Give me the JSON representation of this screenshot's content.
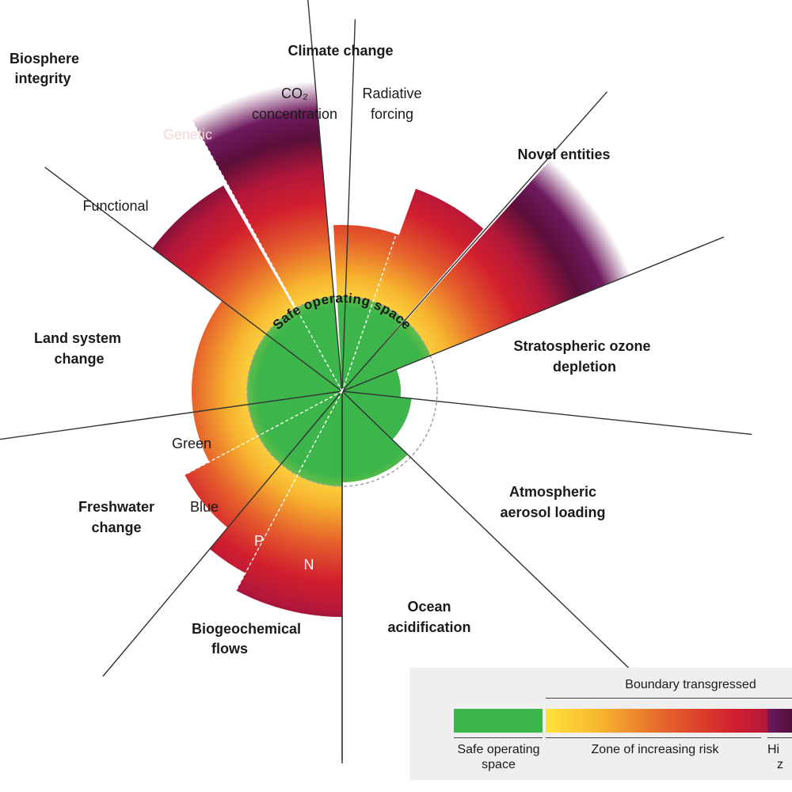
{
  "center_label": "Safe operating space",
  "colors": {
    "safe": "#3cb54a",
    "risk_yellow": "#ffe23a",
    "risk_orange": "#f2a72c",
    "risk_red": "#d11f2e",
    "high_risk": "#5a0f3a",
    "line": "#333333",
    "boundary_dash": "#9a9a9a"
  },
  "boundaries": [
    {
      "name": "Climate change",
      "subs": [
        "CO₂ concentration",
        "Radiative forcing"
      ]
    },
    {
      "name": "Novel entities"
    },
    {
      "name": "Stratospheric ozone depletion"
    },
    {
      "name": "Atmospheric aerosol loading"
    },
    {
      "name": "Ocean acidification"
    },
    {
      "name": "Biogeochemical flows",
      "subs": [
        "P",
        "N"
      ]
    },
    {
      "name": "Freshwater change",
      "subs": [
        "Green",
        "Blue"
      ]
    },
    {
      "name": "Land system change"
    },
    {
      "name": "Biosphere integrity",
      "subs": [
        "Functional",
        "Genetic"
      ]
    }
  ],
  "labels": {
    "climate": "Climate change",
    "co2_line1": "CO₂",
    "co2_line2": "concentration",
    "rf_line1": "Radiative",
    "rf_line2": "forcing",
    "novel": "Novel entities",
    "ozone_line1": "Stratospheric ozone",
    "ozone_line2": "depletion",
    "aerosol_line1": "Atmospheric",
    "aerosol_line2": "aerosol loading",
    "ocean_line1": "Ocean",
    "ocean_line2": "acidification",
    "bgc_line1": "Biogeochemical",
    "bgc_line2": "flows",
    "p": "P",
    "n": "N",
    "fresh_line1": "Freshwater",
    "fresh_line2": "change",
    "green": "Green",
    "blue": "Blue",
    "land_line1": "Land system",
    "land_line2": "change",
    "bio_line1": "Biosphere",
    "bio_line2": "integrity",
    "functional": "Functional",
    "genetic": "Genetic"
  },
  "legend": {
    "transgressed": "Boundary transgressed",
    "safe_line1": "Safe operating",
    "safe_line2": "space",
    "risk": "Zone of increasing risk",
    "high_partial_1": "Hi",
    "high_partial_2": "z"
  }
}
